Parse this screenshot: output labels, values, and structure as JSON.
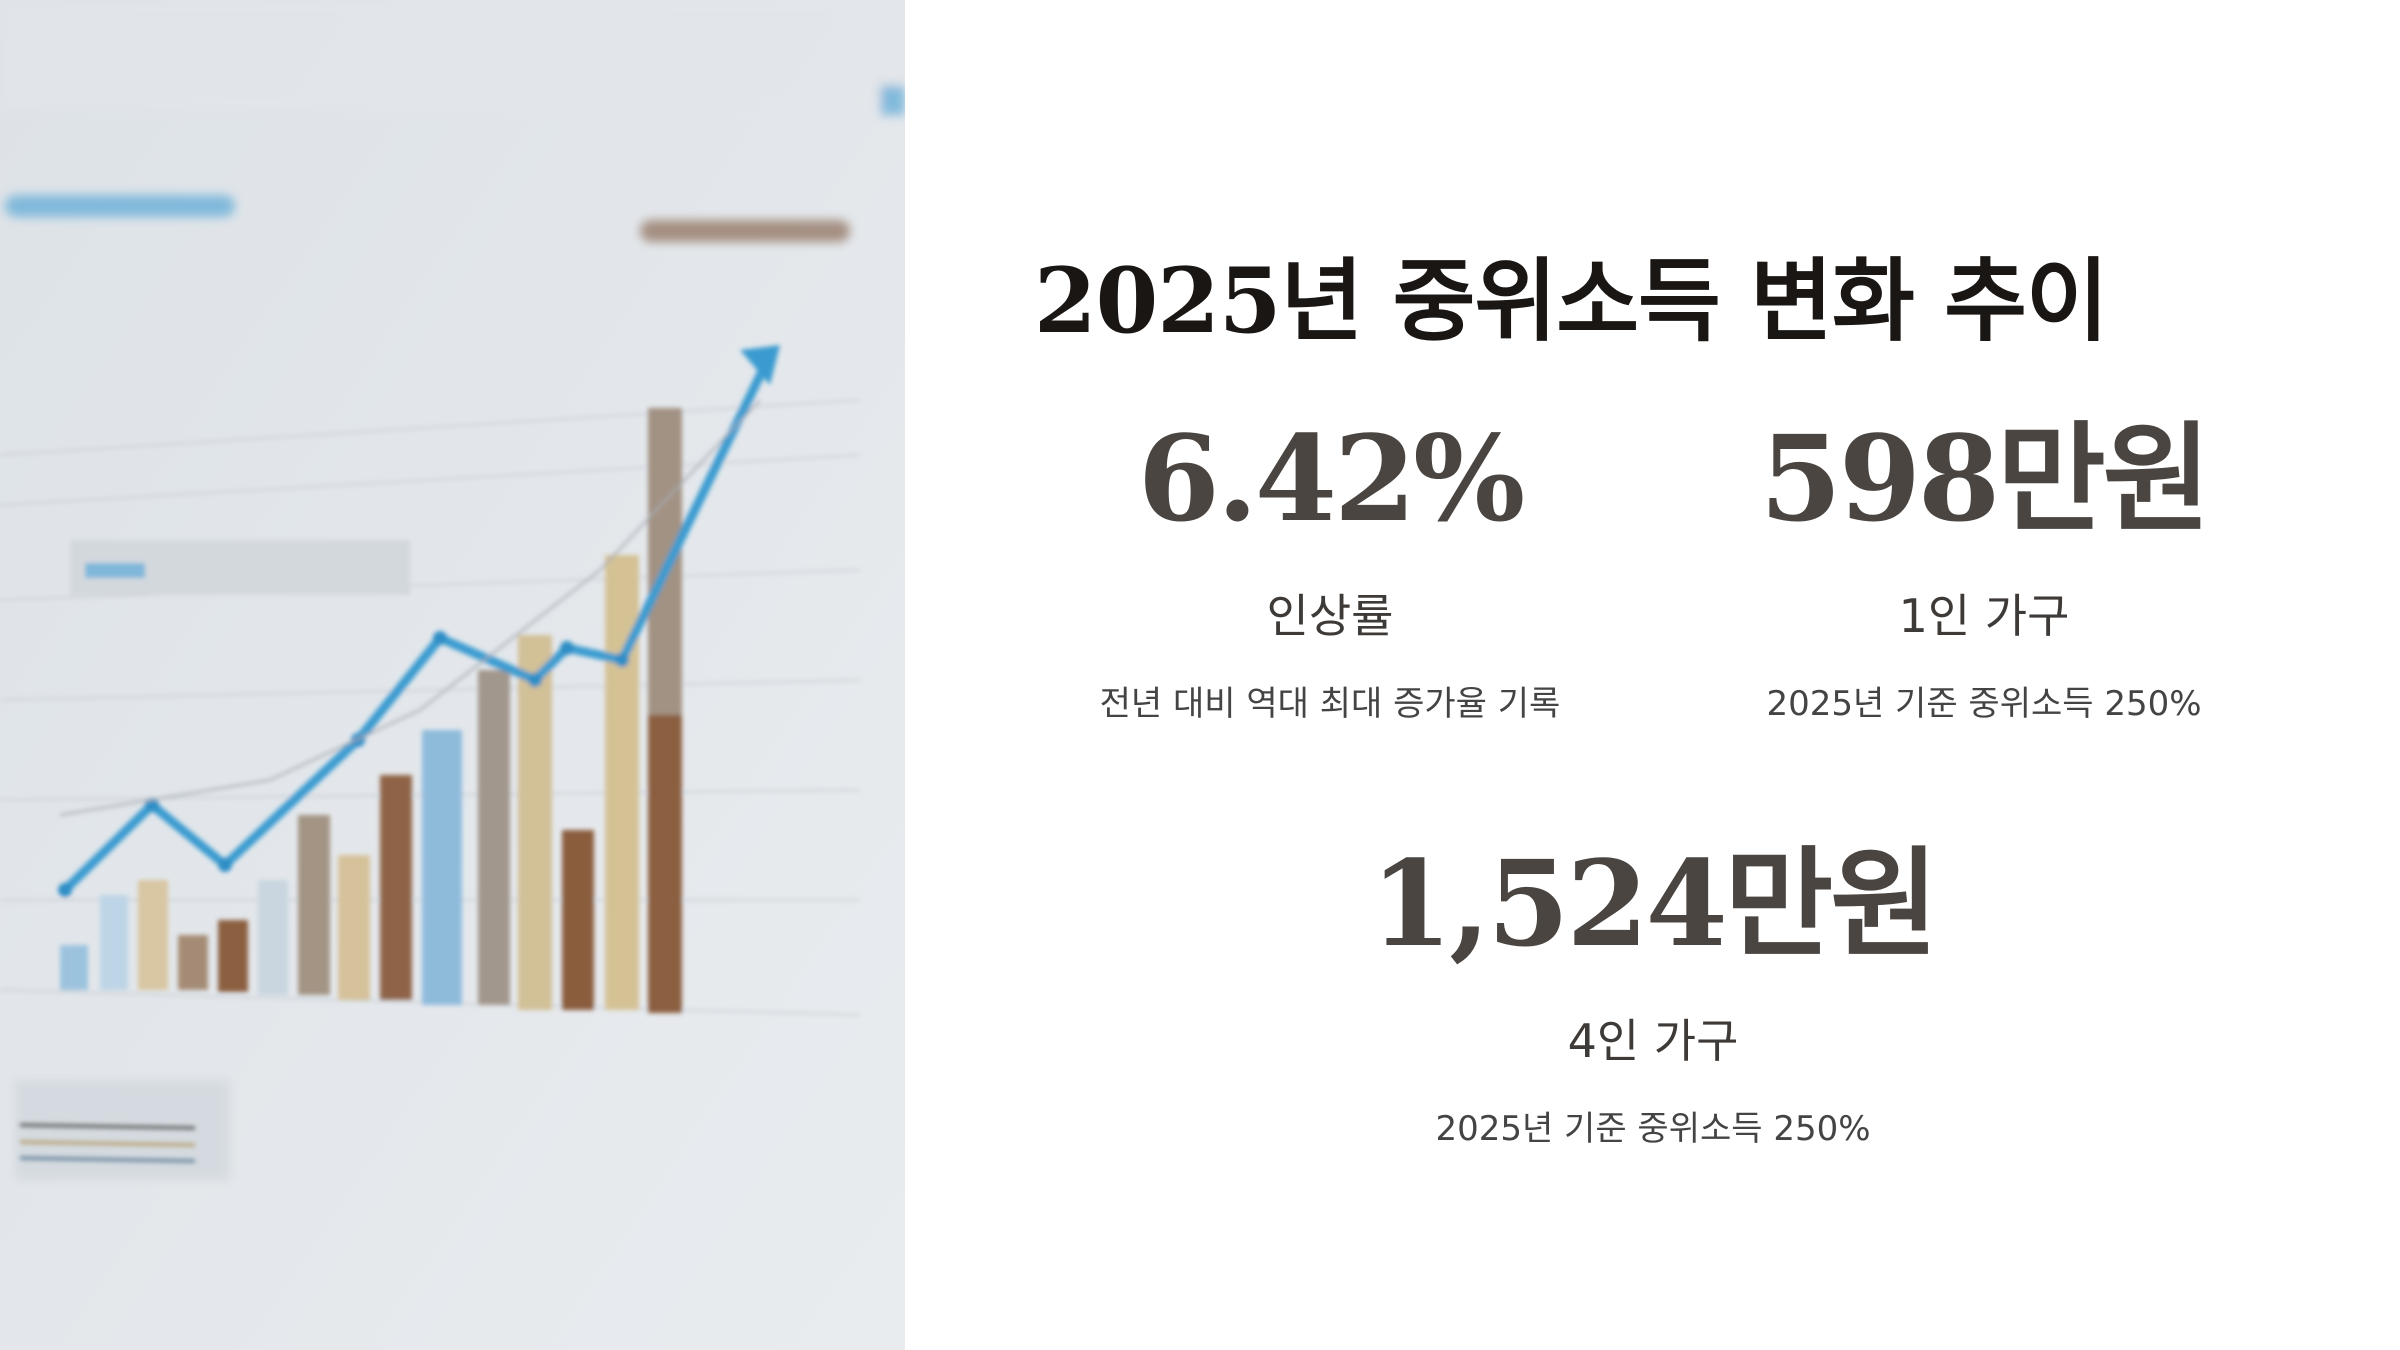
{
  "title": "2025년 중위소득 변화 추이",
  "stats": [
    {
      "value": "6.42%",
      "label": "인상률",
      "description": "전년 대비 역대 최대 증가율 기록"
    },
    {
      "value": "598만원",
      "label": "1인 가구",
      "description": "2025년 기준 중위소득 250%"
    },
    {
      "value": "1,524만원",
      "label": "4인 가구",
      "description": "2025년 기준 중위소득 250%"
    }
  ]
}
